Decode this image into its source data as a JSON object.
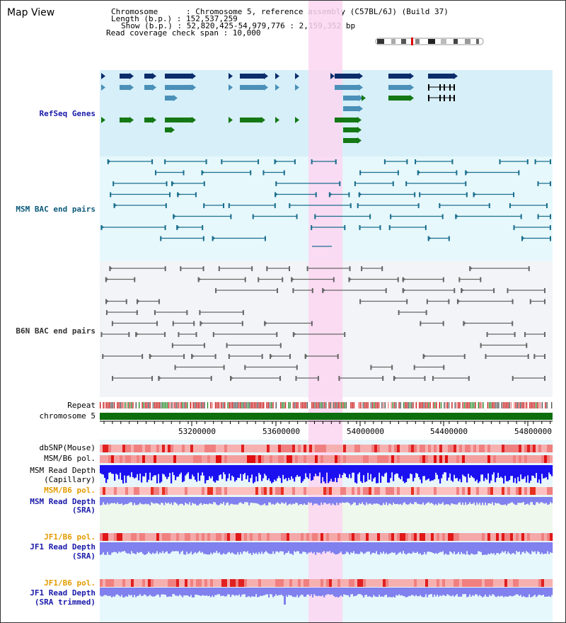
{
  "header": {
    "title": "Map View",
    "chromosome_line": "Chromosome      : Chromosome 5, reference assembly (C57BL/6J) (Build 37)",
    "length_line": "Length (b.p.) : 152,537,259",
    "show_line": "Show (b.p.) : 52,820,425-54,979,776 : 2,159,352 bp",
    "coverage_line": "Read coverage check span : 10,000"
  },
  "tracks": {
    "refseq": "RefSeq Genes",
    "msm_bac": "MSM BAC end pairs",
    "b6n_bac": "B6N BAC end pairs",
    "repeat": "Repeat",
    "chromosome": "chromosome 5",
    "dbsnp": "dbSNP(Mouse)",
    "msm_b6_pol": "MSM/B6 pol.",
    "msm_read_depth": "MSM Read Depth",
    "capillary": "(Capillary)",
    "msm_b6_pol_2": "MSM/B6 pol.",
    "msm_read_depth_sra": "MSM Read Depth",
    "sra": "(SRA)",
    "jf1_b6_pol": "JF1/B6 pol.",
    "jf1_read_depth": "JF1 Read Depth",
    "sra_2": "(SRA)",
    "jf1_b6_pol_2": "JF1/B6 pol.",
    "jf1_read_depth_trim": "JF1 Read Depth",
    "sra_trimmed": "(SRA trimmed)"
  },
  "axis": {
    "ticks": [
      "53200000",
      "53600000",
      "54000000",
      "54400000",
      "54800000"
    ]
  },
  "colors": {
    "highlight": "#fbd6f1",
    "refseq_bg": "#d7eff9",
    "msm_bg": "#e6f8fb",
    "navy": "#0b2d6b",
    "steel": "#4a90b8",
    "green": "#147814",
    "teal": "#1b6e8e",
    "grey": "#666666",
    "chrom": "#0d6e0d",
    "depth_blue": "#1a10f0",
    "depth_light": "#8080ee"
  }
}
